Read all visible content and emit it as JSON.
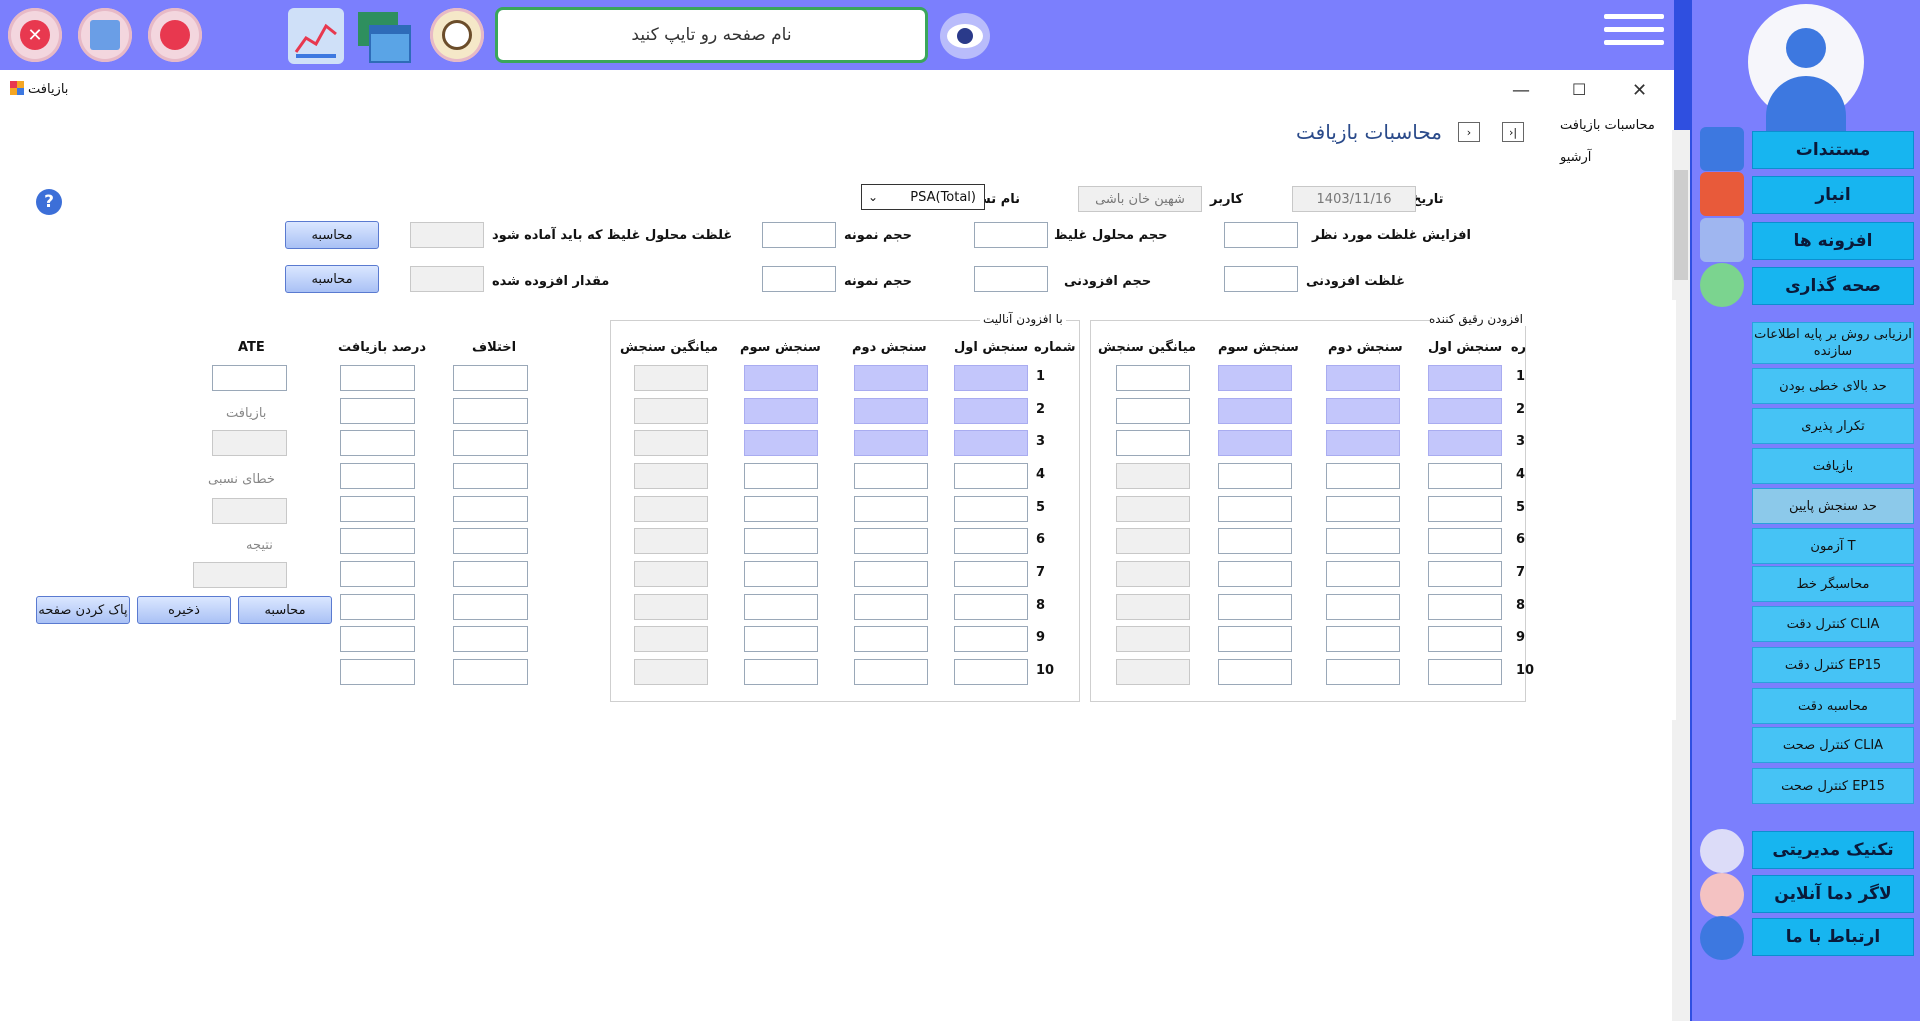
{
  "topbar": {
    "search_placeholder": "نام صفحه رو تایپ کنید",
    "icons": [
      "close-circle-icon",
      "monitor-icon",
      "stop-circle-icon",
      "chart-icon",
      "windows-icon",
      "search-icon",
      "eye-icon",
      "menu-icon"
    ]
  },
  "window": {
    "title": "بازیافت",
    "minimize": "—",
    "maximize": "☐",
    "close": "✕"
  },
  "breadcrumb": {
    "current": "محاسبات بازیافت",
    "archive": "آرشیو"
  },
  "page_title": "محاسبات بازیافت",
  "header": {
    "date_label": "تاریخ",
    "date_value": "1403/11/16",
    "user_label": "کاربر",
    "user_value": "شهین خان باشی",
    "test_label": "نام تست",
    "test_value": "PSA(Total)"
  },
  "form": {
    "row1": {
      "increase_label": "افزایش غلظت مورد نظر",
      "conc_volume_label": "حجم محلول غلیظ",
      "sample_volume_label": "حجم نمونه",
      "prepared_conc_label": "غلظت محلول غلیظ که باید آماده شود",
      "calc_button": "محاسبه"
    },
    "row2": {
      "added_conc_label": "غلظت افزودنی",
      "added_volume_label": "حجم افزودنی",
      "sample_volume_label": "حجم نمونه",
      "added_amount_label": "مقدار افزوده شده",
      "calc_button": "محاسبه"
    }
  },
  "group_diluent": {
    "title": "افزودن رقیق کننده",
    "col_row": "ره",
    "cols": [
      "سنجش اول",
      "سنجش دوم",
      "سنجش سوم",
      "میانگین سنجش"
    ],
    "rows": [
      "1",
      "2",
      "3",
      "4",
      "5",
      "6",
      "7",
      "8",
      "9",
      "10"
    ]
  },
  "group_analyte": {
    "title": "با افزودن آنالیت",
    "col_row": "شماره",
    "cols": [
      "سنجش اول",
      "سنجش دوم",
      "سنجش سوم",
      "میانگین سنجش"
    ],
    "rows": [
      "1",
      "2",
      "3",
      "4",
      "5",
      "6",
      "7",
      "8",
      "9",
      "10"
    ]
  },
  "results": {
    "diff_label": "اختلاف",
    "recovery_pct_label": "درصد بازیافت",
    "ate_label": "ATE",
    "recovery_label": "بازیافت",
    "relative_error_label": "خطای نسبی",
    "result_label": "نتیجه"
  },
  "actions": {
    "calculate": "محاسبه",
    "save": "ذخیره",
    "clear": "پاک کردن صفحه"
  },
  "sidebar": {
    "main_top": [
      {
        "label": "مستندات",
        "icon": "document-icon"
      },
      {
        "label": "انبار",
        "icon": "warehouse-icon"
      },
      {
        "label": "افزونه ها",
        "icon": "plugin-icon"
      },
      {
        "label": "صحه گذاری",
        "icon": "checkmark-icon"
      }
    ],
    "sub_items": [
      "ارزیابی روش بر پایه اطلاعات سازنده",
      "حد بالای خطی بودن",
      "تکرار پذیری",
      "بازیافت",
      "حد سنجش پایین",
      "آزمون T",
      "محاسبگر خط",
      "کنترل دقت CLIA",
      "کنترل دقت EP15",
      "محاسبه دقت",
      "کنترل صحت CLIA",
      "کنترل صحت EP15"
    ],
    "main_bottom": [
      {
        "label": "تکنیک مدیریتی",
        "icon": "checklist-icon"
      },
      {
        "label": "لاگر دما آنلاین",
        "icon": "thermometer-icon"
      },
      {
        "label": "ارتباط با ما",
        "icon": "support-icon"
      }
    ]
  }
}
